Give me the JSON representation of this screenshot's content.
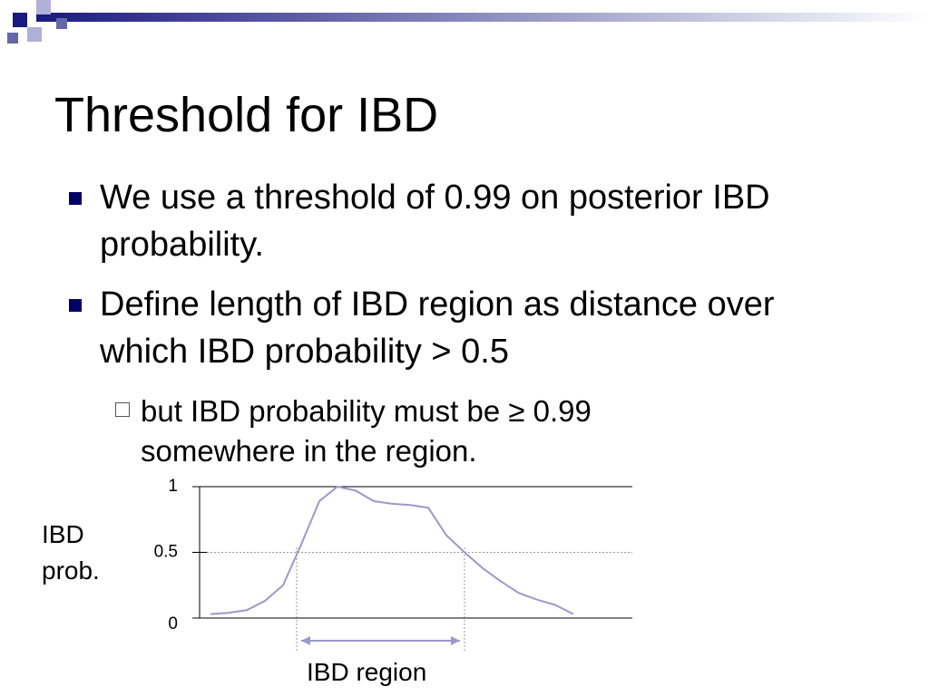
{
  "slide": {
    "title": "Threshold for IBD",
    "bullets": [
      "We use a threshold of 0.99 on posterior IBD probability.",
      "Define length of IBD region as distance over which IBD probability > 0.5"
    ],
    "sub_bullet": "but IBD probability must be ≥ 0.99 somewhere in the region."
  },
  "chart_data": {
    "type": "line",
    "ylabel": "IBD prob.",
    "xlabel": "IBD region",
    "categories": [
      null,
      null,
      null,
      null,
      null,
      null,
      null,
      null,
      null,
      null,
      null,
      null,
      null,
      null,
      null,
      null,
      null,
      null,
      null,
      null,
      null
    ],
    "values": [
      0.03,
      0.04,
      0.06,
      0.13,
      0.25,
      0.56,
      0.89,
      1.0,
      0.97,
      0.89,
      0.87,
      0.86,
      0.84,
      0.63,
      0.5,
      0.38,
      0.28,
      0.19,
      0.14,
      0.1,
      0.03
    ],
    "color": "#9999cc",
    "ylim": [
      0,
      1
    ],
    "yticks": [
      0,
      0.5,
      1
    ]
  }
}
